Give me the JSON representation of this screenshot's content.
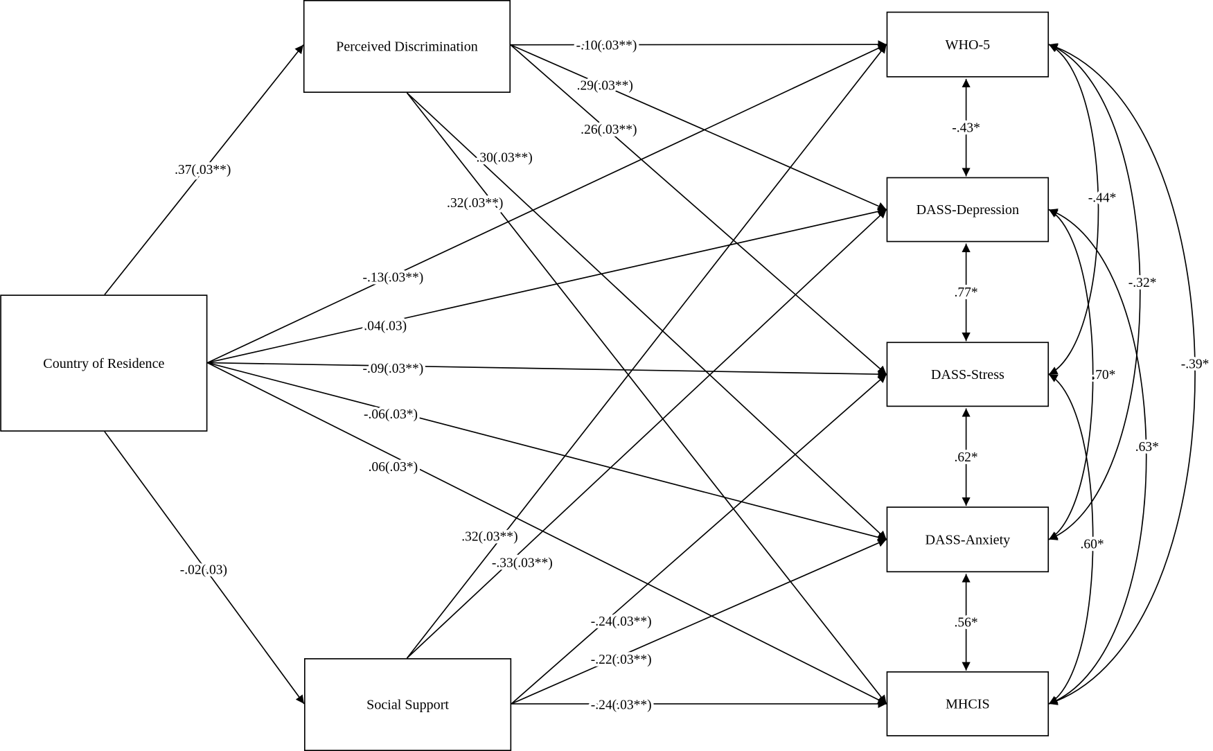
{
  "nodes": [
    {
      "id": "country",
      "label": "Country of Residence"
    },
    {
      "id": "pd",
      "label": "Perceived Discrimination"
    },
    {
      "id": "ss",
      "label": "Social Support"
    },
    {
      "id": "who5",
      "label": "WHO-5"
    },
    {
      "id": "dep",
      "label": "DASS-Depression"
    },
    {
      "id": "stress",
      "label": "DASS-Stress"
    },
    {
      "id": "anx",
      "label": "DASS-Anxiety"
    },
    {
      "id": "mhcis",
      "label": "MHCIS"
    }
  ],
  "paths": [
    {
      "from": "country",
      "to": "pd",
      "label": ".37(.03**)"
    },
    {
      "from": "country",
      "to": "ss",
      "label": "-.02(.03)"
    },
    {
      "from": "country",
      "to": "who5",
      "label": "-.13(.03**)"
    },
    {
      "from": "country",
      "to": "dep",
      "label": ".04(.03)"
    },
    {
      "from": "country",
      "to": "stress",
      "label": "-.09(.03**)"
    },
    {
      "from": "country",
      "to": "anx",
      "label": "-.06(.03*)"
    },
    {
      "from": "country",
      "to": "mhcis",
      "label": ".06(.03*)"
    },
    {
      "from": "pd",
      "to": "who5",
      "label": "-.10(.03**)"
    },
    {
      "from": "pd",
      "to": "dep",
      "label": ".29(.03**)"
    },
    {
      "from": "pd",
      "to": "stress",
      "label": ".26(.03**)"
    },
    {
      "from": "pd",
      "to": "anx",
      "label": ".30(.03**)"
    },
    {
      "from": "pd",
      "to": "mhcis",
      "label": ".32(.03**)"
    },
    {
      "from": "ss",
      "to": "who5",
      "label": ".32(.03**)"
    },
    {
      "from": "ss",
      "to": "dep",
      "label": "-.33(.03**)"
    },
    {
      "from": "ss",
      "to": "stress",
      "label": "-.24(.03**)"
    },
    {
      "from": "ss",
      "to": "anx",
      "label": "-.22(.03**)"
    },
    {
      "from": "ss",
      "to": "mhcis",
      "label": "-.24(.03**)"
    }
  ],
  "correlations": [
    {
      "a": "who5",
      "b": "dep",
      "label": "-.43*"
    },
    {
      "a": "dep",
      "b": "stress",
      "label": ".77*"
    },
    {
      "a": "stress",
      "b": "anx",
      "label": ".62*"
    },
    {
      "a": "anx",
      "b": "mhcis",
      "label": ".56*"
    },
    {
      "a": "who5",
      "b": "stress",
      "label": "-.44*"
    },
    {
      "a": "who5",
      "b": "anx",
      "label": "-.32*"
    },
    {
      "a": "who5",
      "b": "mhcis",
      "label": "-.39*"
    },
    {
      "a": "dep",
      "b": "anx",
      "label": ".70*"
    },
    {
      "a": "dep",
      "b": "mhcis",
      "label": ".63*"
    },
    {
      "a": "stress",
      "b": "mhcis",
      "label": ".60*"
    }
  ]
}
